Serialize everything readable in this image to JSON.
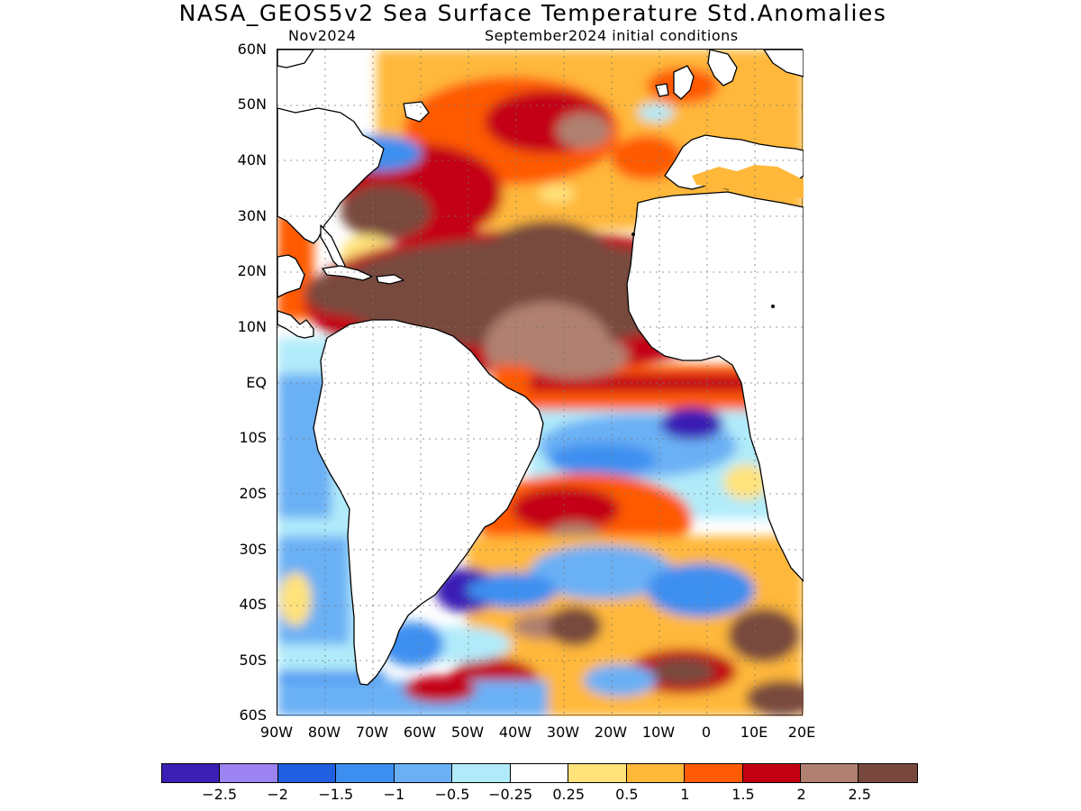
{
  "header": {
    "title": "NASA_GEOS5v2 Sea Surface Temperature Std.Anomalies",
    "forecast_month": "Nov2024",
    "init_conditions": "September2024 initial conditions"
  },
  "map": {
    "projection": "lat-lon",
    "lon_range": [
      -90,
      20
    ],
    "lat_range": [
      -60,
      60
    ],
    "grid_lines": "dotted",
    "lat_labels": [
      "60N",
      "50N",
      "40N",
      "30N",
      "20N",
      "10N",
      "EQ",
      "10S",
      "20S",
      "30S",
      "40S",
      "50S",
      "60S"
    ],
    "lon_labels": [
      "90W",
      "80W",
      "70W",
      "60W",
      "50W",
      "40W",
      "30W",
      "20W",
      "10W",
      "0",
      "10E",
      "20E"
    ],
    "land_color": "#ffffff",
    "coastline_color": "#000000",
    "anomaly_regions": [
      {
        "region": "Caribbean / tropical North Atlantic",
        "level": 2.5
      },
      {
        "region": "Gulf Stream / western North Atlantic",
        "level": 2.0
      },
      {
        "region": "Northeast Atlantic",
        "level": 1.5
      },
      {
        "region": "Equatorial Atlantic band",
        "level": 1.5
      },
      {
        "region": "Southeast tropical Atlantic (Angola)",
        "level": -1.0
      },
      {
        "region": "Southwest Atlantic off Argentina",
        "level": -2.5
      },
      {
        "region": "Southeast Pacific off Chile",
        "level": -0.5
      }
    ]
  },
  "colorbar": {
    "colors": [
      "#3b1fb5",
      "#9b83f2",
      "#1f5fe0",
      "#3c8ff0",
      "#6bb0f5",
      "#b1ebfa",
      "#ffffff",
      "#ffe27a",
      "#ffb83a",
      "#ff5a06",
      "#c30012",
      "#b08070",
      "#78483e"
    ],
    "labels": [
      "−2.5",
      "−2",
      "−1.5",
      "−1",
      "−0.5",
      "−0.25",
      "0.25",
      "0.5",
      "1",
      "1.5",
      "2",
      "2.5"
    ]
  }
}
